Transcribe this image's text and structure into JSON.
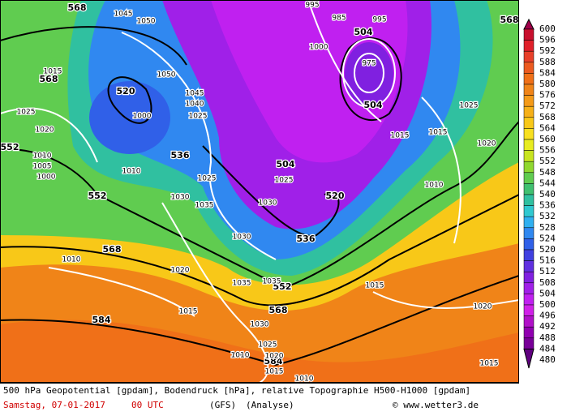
{
  "map": {
    "geopotential_labels": [
      568,
      568,
      568,
      520,
      552,
      536,
      504,
      520,
      552,
      536,
      568,
      552,
      568,
      584,
      584,
      504,
      504
    ],
    "pressure_labels": [
      1045,
      1050,
      995,
      985,
      995,
      1000,
      1015,
      1025,
      1020,
      1010,
      1005,
      1000,
      1000,
      1050,
      1045,
      1040,
      1025,
      1010,
      1025,
      1030,
      1035,
      1030,
      1025,
      1030,
      1020,
      1035,
      1035,
      1015,
      1030,
      1025,
      1020,
      1015,
      1010,
      1010,
      1010,
      1015,
      1020,
      1015,
      1020,
      1015,
      1010,
      1025,
      1015,
      975
    ]
  },
  "legend": {
    "levels": [
      600,
      596,
      592,
      588,
      584,
      580,
      576,
      572,
      568,
      564,
      560,
      556,
      552,
      548,
      544,
      540,
      536,
      532,
      528,
      524,
      520,
      516,
      512,
      508,
      504,
      500,
      496,
      492,
      488,
      484,
      480
    ],
    "colors": [
      "#a0004a",
      "#c8102e",
      "#e0202a",
      "#e8402a",
      "#ec5a20",
      "#f07018",
      "#f08418",
      "#f49a18",
      "#f6b018",
      "#f8c818",
      "#f8e020",
      "#e8ec20",
      "#c8e420",
      "#90d830",
      "#60cc50",
      "#40c070",
      "#30c0a0",
      "#30c8d0",
      "#30b0f0",
      "#3088f0",
      "#3060e8",
      "#4040e0",
      "#6030e0",
      "#8020e0",
      "#a020e8",
      "#c020f0",
      "#d020e8",
      "#b010c8",
      "#9000b0",
      "#780098",
      "#600080"
    ]
  },
  "footer": {
    "line1": "500 hPa Geopotential [gpdam], Bodendruck [hPa], relative Topographie H500-H1000 [gpdam]",
    "date": "Samstag, 07-01-2017",
    "time": "00 UTC",
    "model": "(GFS)",
    "run": "(Analyse)",
    "credit": "© www.wetter3.de"
  }
}
